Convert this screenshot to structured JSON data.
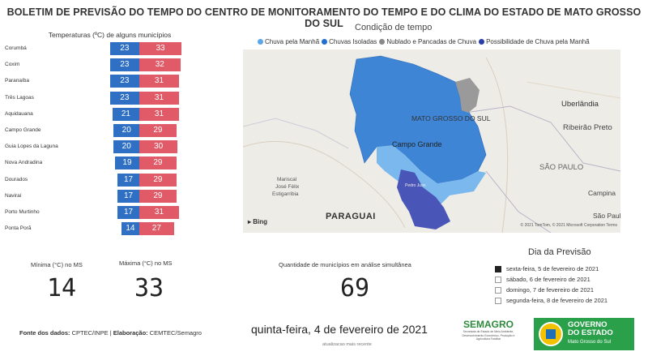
{
  "title": "BOLETIM DE PREVISÃO DO TEMPO DO CENTRO DE MONITORAMENTO DO TEMPO E DO CLIMA DO ESTADO DE MATO GROSSO DO SUL",
  "temperatures": {
    "title": "Temperaturas (ºC) de alguns municípios",
    "min_color": "#2f6fc4",
    "max_color": "#e05a68",
    "rows": [
      {
        "name": "Corumbá",
        "min": 23,
        "max": 33
      },
      {
        "name": "Coxim",
        "min": 23,
        "max": 32
      },
      {
        "name": "Paranaíba",
        "min": 23,
        "max": 31
      },
      {
        "name": "Três Lagoas",
        "min": 23,
        "max": 31
      },
      {
        "name": "Aquidauana",
        "min": 21,
        "max": 31
      },
      {
        "name": "Campo Grande",
        "min": 20,
        "max": 29
      },
      {
        "name": "Guia Lopes da Laguna",
        "min": 20,
        "max": 30
      },
      {
        "name": "Nova Andradina",
        "min": 19,
        "max": 29
      },
      {
        "name": "Dourados",
        "min": 17,
        "max": 29
      },
      {
        "name": "Naviraí",
        "min": 17,
        "max": 29
      },
      {
        "name": "Porto Murtinho",
        "min": 17,
        "max": 31
      },
      {
        "name": "Ponta Porã",
        "min": 14,
        "max": 27
      }
    ]
  },
  "map": {
    "title": "Condição de tempo",
    "legend": [
      {
        "label": "Chuva pela Manhã",
        "color": "#5aa6e8"
      },
      {
        "label": "Chuvas Isoladas",
        "color": "#1f6fd0"
      },
      {
        "label": "Nublado e Pancadas de Chuva",
        "color": "#8a8a8a"
      },
      {
        "label": "Possibilidade de Chuva pela Manhã",
        "color": "#2b3fa8"
      }
    ],
    "labels": {
      "ms": "MATO GROSSO DO SUL",
      "cg": "Campo Grande",
      "uberlandia": "Uberlândia",
      "ribeirao": "Ribeirão Preto",
      "sao_paulo_state": "SÃO PAULO",
      "campinas": "Campina",
      "sao_paulo": "São Paulo",
      "mariscal": "Mariscal",
      "jose": "José Félix",
      "estigarribia": "Estigarribia",
      "pedro": "Pedro Juan",
      "paraguai": "PARAGUAI"
    },
    "bing": "Bing",
    "copyright": "© 2021 TomTom, © 2021 Microsoft Corporation Terms"
  },
  "stats": {
    "min_label": "Mínima (°C) no MS",
    "min_value": "14",
    "max_label": "Máxima (°C) no MS",
    "max_value": "33",
    "count_label": "Quantidade de municípios em análise simultânea",
    "count_value": "69"
  },
  "dia": {
    "title": "Dia da Previsão",
    "options": [
      {
        "label": "sexta-feira, 5 de fevereiro de 2021",
        "checked": true
      },
      {
        "label": "sábado, 6 de fevereiro de 2021",
        "checked": false
      },
      {
        "label": "domingo, 7 de fevereiro de 2021",
        "checked": false
      },
      {
        "label": "segunda-feira, 8 de fevereiro de 2021",
        "checked": false
      }
    ]
  },
  "footer": {
    "fonte_label": "Fonte dos dados:",
    "fonte_value": "CPTEC/INPE",
    "elab_label": "Elaboração:",
    "elab_value": "CEMTEC/Semagro",
    "date": "quinta-feira, 4 de fevereiro de 2021",
    "updated": "atualizacao mais recente"
  },
  "logos": {
    "semagro": "SEMAGRO",
    "semagro_sub": "Secretaria de Estado de Meio Ambiente, Desenvolvimento Econômico, Produção e Agricultura Familiar",
    "gov1": "GOVERNO",
    "gov2": "DO ESTADO",
    "gov3": "Mato Grosso do Sul"
  }
}
